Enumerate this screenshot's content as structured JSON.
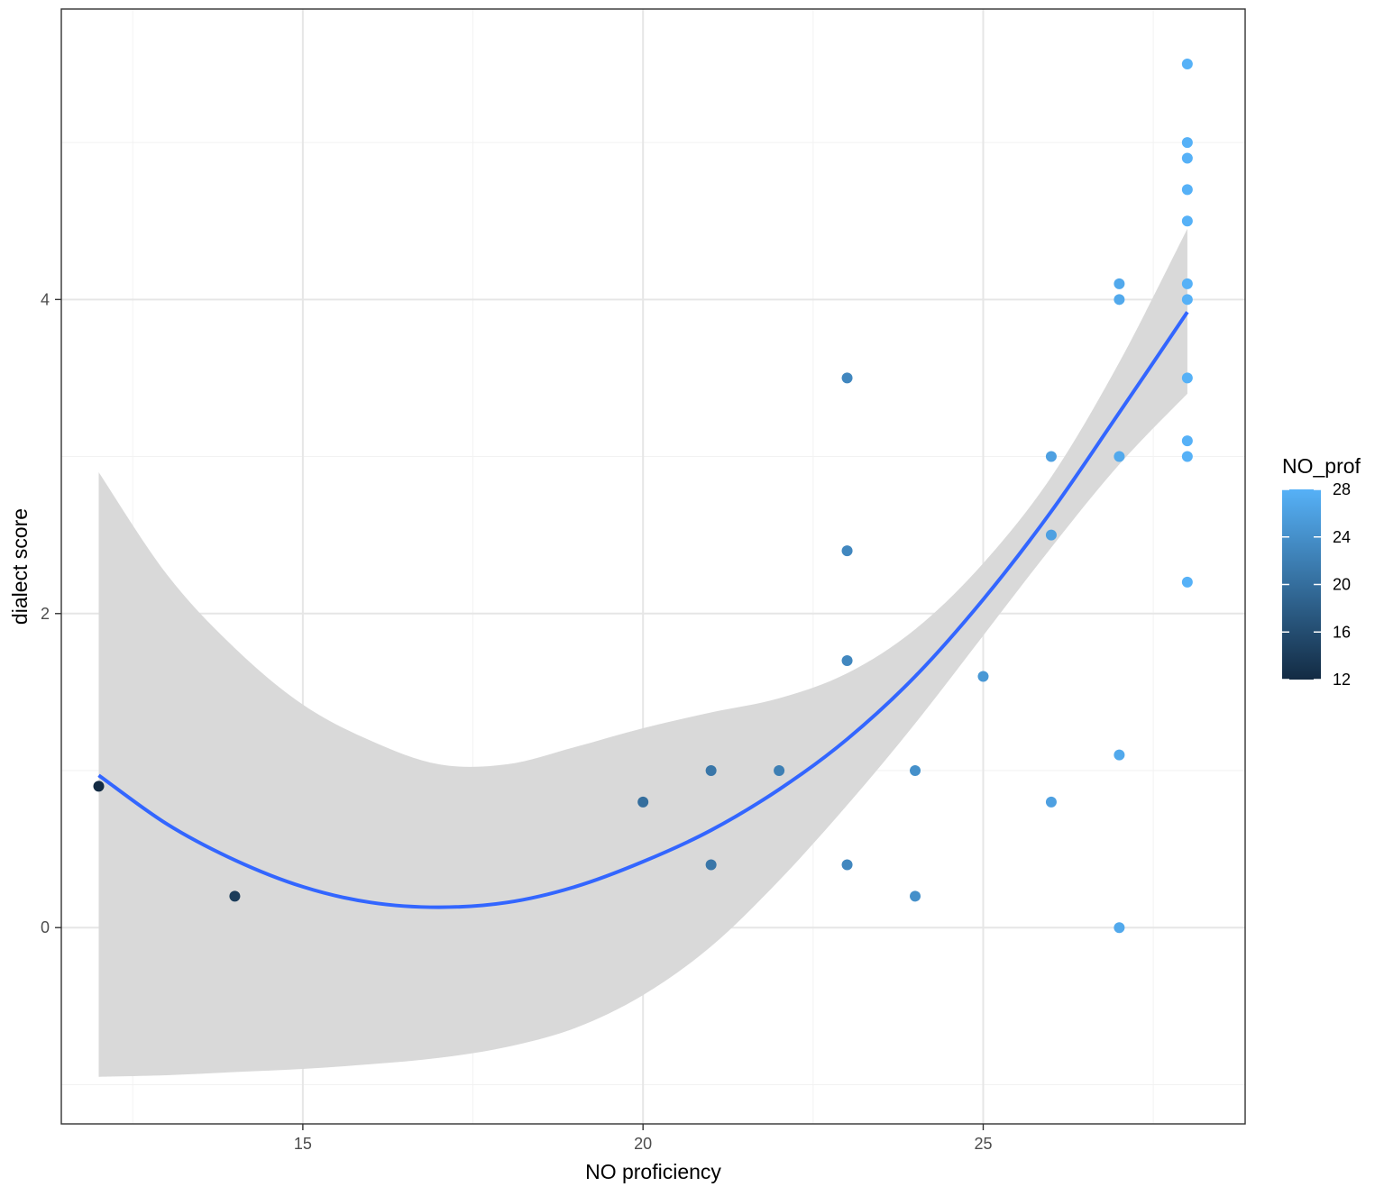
{
  "chart_data": {
    "type": "scatter",
    "xlabel": "NO proficiency",
    "ylabel": "dialect score",
    "xlim": [
      11.45,
      28.85
    ],
    "ylim": [
      -1.25,
      5.85
    ],
    "x_ticks": [
      15,
      20,
      25
    ],
    "y_ticks": [
      0,
      2,
      4
    ],
    "grid": true,
    "points": [
      {
        "x": 12,
        "y": 0.9
      },
      {
        "x": 14,
        "y": 0.2
      },
      {
        "x": 20,
        "y": 0.8
      },
      {
        "x": 21,
        "y": 1.0
      },
      {
        "x": 21,
        "y": 0.4
      },
      {
        "x": 22,
        "y": 1.0
      },
      {
        "x": 23,
        "y": 3.5
      },
      {
        "x": 23,
        "y": 2.4
      },
      {
        "x": 23,
        "y": 1.7
      },
      {
        "x": 23,
        "y": 0.4
      },
      {
        "x": 24,
        "y": 1.0
      },
      {
        "x": 24,
        "y": 0.2
      },
      {
        "x": 25,
        "y": 1.6
      },
      {
        "x": 26,
        "y": 3.0
      },
      {
        "x": 26,
        "y": 2.5
      },
      {
        "x": 26,
        "y": 0.8
      },
      {
        "x": 27,
        "y": 4.1
      },
      {
        "x": 27,
        "y": 4.0
      },
      {
        "x": 27,
        "y": 3.0
      },
      {
        "x": 27,
        "y": 1.1
      },
      {
        "x": 27,
        "y": 0.0
      },
      {
        "x": 28,
        "y": 5.5
      },
      {
        "x": 28,
        "y": 5.0
      },
      {
        "x": 28,
        "y": 4.9
      },
      {
        "x": 28,
        "y": 4.7
      },
      {
        "x": 28,
        "y": 4.5
      },
      {
        "x": 28,
        "y": 4.1
      },
      {
        "x": 28,
        "y": 4.0
      },
      {
        "x": 28,
        "y": 3.5
      },
      {
        "x": 28,
        "y": 3.1
      },
      {
        "x": 28,
        "y": 3.0
      },
      {
        "x": 28,
        "y": 2.2
      }
    ],
    "smooth": {
      "method": "quadratic fit with confidence band",
      "x": [
        12,
        13,
        14,
        15,
        16,
        17,
        18,
        19,
        20,
        21,
        22,
        23,
        24,
        25,
        26,
        27,
        28
      ],
      "y": [
        0.97,
        0.66,
        0.43,
        0.26,
        0.16,
        0.13,
        0.16,
        0.26,
        0.42,
        0.62,
        0.88,
        1.2,
        1.6,
        2.09,
        2.65,
        3.28,
        3.92
      ],
      "ymin": [
        -0.95,
        -0.94,
        -0.92,
        -0.9,
        -0.87,
        -0.83,
        -0.76,
        -0.64,
        -0.43,
        -0.12,
        0.3,
        0.78,
        1.3,
        1.86,
        2.42,
        2.95,
        3.4
      ],
      "ymax": [
        2.9,
        2.25,
        1.78,
        1.42,
        1.19,
        1.04,
        1.04,
        1.15,
        1.27,
        1.37,
        1.46,
        1.62,
        1.9,
        2.32,
        2.87,
        3.6,
        4.45
      ],
      "line_color": "#3366ff",
      "band_color": "#d9d9d9"
    },
    "color_scale": {
      "title": "NO_prof",
      "variable": "x",
      "min": 12,
      "max": 28,
      "low_color": "#132b43",
      "high_color": "#56b1f7",
      "legend_ticks": [
        12,
        16,
        20,
        24,
        28
      ]
    }
  }
}
